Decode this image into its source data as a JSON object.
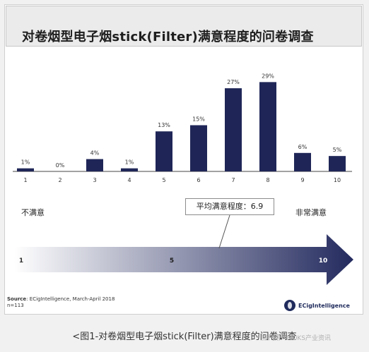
{
  "title": "对卷烟型电子烟stick(Filter)满意程度的问卷调查",
  "chart_data": {
    "type": "bar",
    "categories": [
      "1",
      "2",
      "3",
      "4",
      "5",
      "6",
      "7",
      "8",
      "9",
      "10"
    ],
    "values": [
      1,
      0,
      4,
      1,
      13,
      15,
      27,
      29,
      6,
      5
    ],
    "value_labels": [
      "1%",
      "0%",
      "4%",
      "1%",
      "13%",
      "15%",
      "27%",
      "29%",
      "6%",
      "5%"
    ],
    "ylim": [
      0,
      30
    ],
    "unit": "%",
    "color": "#1f2657",
    "grid": false,
    "title": "",
    "xlabel": "",
    "ylabel": ""
  },
  "scale": {
    "low_label": "不满意",
    "high_label": "非常满意",
    "arrow_ticks": [
      "1",
      "5",
      "10"
    ],
    "average_callout": "平均满意程度：6.9",
    "average_value": 6.9,
    "gradient_start": "#ffffff",
    "gradient_end": "#232a5e"
  },
  "source": {
    "label": "Source",
    "text": ": ECigIntelligence, March-April 2018",
    "sample": "n=113"
  },
  "brand": "ECigIntelligence",
  "caption": "<图1-对卷烟型电子烟stick(Filter)满意程度的问卷调查",
  "watermark_chat": "蒸汽帮 · MOKS产业资讯"
}
